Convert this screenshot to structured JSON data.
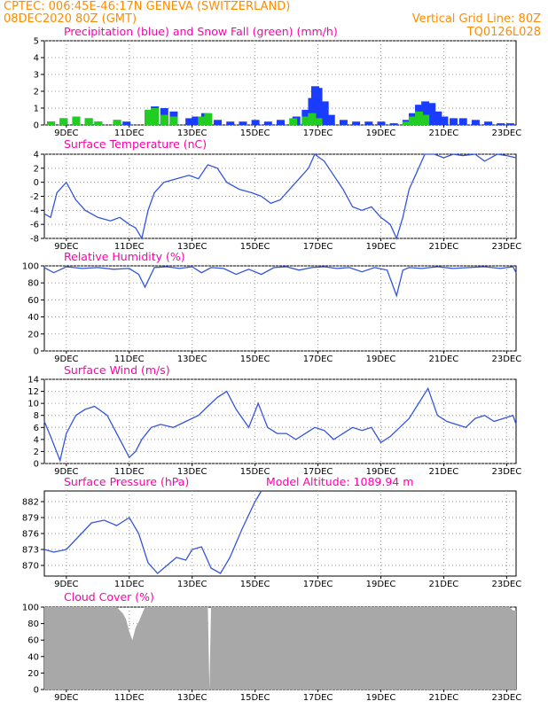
{
  "header": {
    "line1": "CPTEC:   006:45E-46:17N   GENEVA (SWITZERLAND)",
    "line2": "08DEC2020 80Z (GMT)",
    "grid_note": "Vertical Grid Line: 80Z",
    "code": "TQ0126L028"
  },
  "colors": {
    "header": "#ff8c00",
    "title": "#ff00aa",
    "precip": "#1a3cff",
    "snow": "#22cc22",
    "line": "#3355dd",
    "cloud": "#a8a8a8",
    "grid": "#999999"
  },
  "x_axis": {
    "labels": [
      "9DEC",
      "11DEC",
      "13DEC",
      "15DEC",
      "17DEC",
      "19DEC",
      "21DEC",
      "23DEC"
    ],
    "label_days": [
      9,
      11,
      13,
      15,
      17,
      19,
      21,
      23
    ],
    "range_days": [
      8.3,
      23.3
    ]
  },
  "chart_data": [
    {
      "type": "bar",
      "title": "Precipitation (blue) and Snow Fall (green) (mm/h)",
      "ylim": [
        0,
        5
      ],
      "yticks": [
        "0",
        "1",
        "2",
        "3",
        "4",
        "5"
      ],
      "series": [
        {
          "name": "Precipitation",
          "x": [
            8.5,
            8.9,
            9.3,
            9.7,
            10.0,
            10.6,
            10.9,
            11.6,
            11.8,
            12.1,
            12.4,
            12.9,
            13.1,
            13.4,
            13.8,
            14.2,
            14.6,
            15.0,
            15.4,
            15.8,
            16.3,
            16.6,
            16.8,
            16.9,
            17.0,
            17.2,
            17.4,
            17.8,
            18.2,
            18.6,
            19.0,
            19.4,
            19.8,
            20.0,
            20.2,
            20.4,
            20.6,
            20.8,
            21.0,
            21.3,
            21.6,
            22.0,
            22.4,
            22.8,
            23.1
          ],
          "values": [
            0.2,
            0.4,
            0.5,
            0.4,
            0.2,
            0.3,
            0.2,
            0.9,
            1.1,
            1.0,
            0.8,
            0.4,
            0.5,
            0.7,
            0.3,
            0.2,
            0.2,
            0.3,
            0.2,
            0.3,
            0.5,
            0.9,
            1.6,
            2.3,
            2.2,
            1.4,
            0.6,
            0.3,
            0.2,
            0.2,
            0.2,
            0.1,
            0.3,
            0.7,
            1.2,
            1.4,
            1.3,
            0.8,
            0.5,
            0.4,
            0.4,
            0.3,
            0.2,
            0.1,
            0.1
          ]
        },
        {
          "name": "Snow Fall",
          "x": [
            8.5,
            8.9,
            9.3,
            9.7,
            10.0,
            10.6,
            11.6,
            11.8,
            12.1,
            12.4,
            13.3,
            13.5,
            16.2,
            16.6,
            16.8,
            17.0,
            19.8,
            20.0,
            20.2,
            20.4
          ],
          "values": [
            0.2,
            0.4,
            0.5,
            0.4,
            0.2,
            0.3,
            0.9,
            1.0,
            0.6,
            0.5,
            0.5,
            0.7,
            0.4,
            0.5,
            0.7,
            0.4,
            0.2,
            0.5,
            0.8,
            0.6
          ]
        }
      ]
    },
    {
      "type": "line",
      "title": "Surface Temperature (nC)",
      "ylim": [
        -8,
        4
      ],
      "yticks": [
        "-8",
        "-6",
        "-4",
        "-2",
        "0",
        "2",
        "4"
      ],
      "x": [
        8.3,
        8.5,
        8.7,
        9.0,
        9.3,
        9.6,
        10.0,
        10.4,
        10.7,
        11.0,
        11.2,
        11.4,
        11.6,
        11.8,
        12.1,
        12.5,
        12.9,
        13.2,
        13.5,
        13.8,
        14.1,
        14.5,
        14.9,
        15.2,
        15.5,
        15.8,
        16.1,
        16.4,
        16.7,
        16.9,
        17.2,
        17.5,
        17.8,
        18.1,
        18.4,
        18.7,
        19.0,
        19.3,
        19.5,
        19.7,
        19.9,
        20.1,
        20.4,
        20.7,
        21.0,
        21.3,
        21.6,
        22.0,
        22.3,
        22.7,
        23.0,
        23.3
      ],
      "values": [
        -4.5,
        -5.0,
        -1.5,
        0.0,
        -2.5,
        -4.0,
        -5.0,
        -5.5,
        -5.0,
        -6.0,
        -6.5,
        -8.5,
        -4.0,
        -1.5,
        0.0,
        0.5,
        1.0,
        0.5,
        2.5,
        2.0,
        0.0,
        -1.0,
        -1.5,
        -2.0,
        -3.0,
        -2.5,
        -1.0,
        0.5,
        2.0,
        4.0,
        3.0,
        1.0,
        -1.0,
        -3.5,
        -4.0,
        -3.5,
        -5.0,
        -6.0,
        -8.5,
        -5.0,
        -1.0,
        1.0,
        4.0,
        4.0,
        3.5,
        4.0,
        3.8,
        4.0,
        3.0,
        4.0,
        3.8,
        3.5
      ]
    },
    {
      "type": "line",
      "title": "Relative Humidity (%)",
      "ylim": [
        0,
        100
      ],
      "yticks": [
        "0",
        "20",
        "40",
        "60",
        "80",
        "100"
      ],
      "x": [
        8.3,
        8.6,
        9.0,
        9.5,
        10.0,
        10.5,
        11.0,
        11.3,
        11.5,
        11.8,
        12.2,
        12.6,
        13.0,
        13.3,
        13.6,
        14.0,
        14.4,
        14.8,
        15.2,
        15.6,
        16.0,
        16.4,
        16.8,
        17.2,
        17.6,
        18.0,
        18.4,
        18.8,
        19.2,
        19.5,
        19.7,
        19.9,
        20.3,
        20.8,
        21.3,
        21.8,
        22.3,
        22.8,
        23.2,
        23.3
      ],
      "values": [
        98,
        92,
        99,
        97,
        98,
        96,
        97,
        90,
        75,
        98,
        99,
        97,
        99,
        92,
        98,
        97,
        90,
        96,
        90,
        98,
        99,
        95,
        98,
        99,
        97,
        98,
        93,
        98,
        95,
        65,
        95,
        98,
        97,
        99,
        97,
        98,
        99,
        97,
        99,
        92
      ]
    },
    {
      "type": "line",
      "title": "Surface Wind (m/s)",
      "ylim": [
        0,
        14
      ],
      "yticks": [
        "0",
        "2",
        "4",
        "6",
        "8",
        "10",
        "12",
        "14"
      ],
      "x": [
        8.3,
        8.5,
        8.8,
        9.0,
        9.3,
        9.6,
        9.9,
        10.3,
        10.6,
        10.8,
        11.0,
        11.2,
        11.4,
        11.7,
        12.0,
        12.4,
        12.8,
        13.2,
        13.5,
        13.8,
        14.1,
        14.4,
        14.8,
        15.1,
        15.4,
        15.7,
        16.0,
        16.3,
        16.6,
        16.9,
        17.2,
        17.5,
        17.8,
        18.1,
        18.4,
        18.7,
        19.0,
        19.3,
        19.6,
        19.9,
        20.2,
        20.5,
        20.8,
        21.1,
        21.4,
        21.7,
        22.0,
        22.3,
        22.6,
        22.9,
        23.2,
        23.3
      ],
      "values": [
        7.0,
        4.5,
        0.5,
        5.0,
        8.0,
        9.0,
        9.5,
        8.0,
        5.0,
        3.0,
        1.0,
        2.0,
        4.0,
        6.0,
        6.5,
        6.0,
        7.0,
        8.0,
        9.5,
        11.0,
        12.0,
        9.0,
        6.0,
        10.0,
        6.0,
        5.0,
        5.0,
        4.0,
        5.0,
        6.0,
        5.5,
        4.0,
        5.0,
        6.0,
        5.5,
        6.0,
        3.5,
        4.5,
        6.0,
        7.5,
        10.0,
        12.5,
        8.0,
        7.0,
        6.5,
        6.0,
        7.5,
        8.0,
        7.0,
        7.5,
        8.0,
        6.5
      ]
    },
    {
      "type": "line",
      "title": "Surface Pressure (hPa)",
      "annotation": "Model Altitude: 1089.94  m",
      "ylim": [
        868,
        884
      ],
      "yticks": [
        "870",
        "873",
        "876",
        "879",
        "882"
      ],
      "x": [
        8.3,
        8.6,
        9.0,
        9.4,
        9.8,
        10.2,
        10.6,
        11.0,
        11.3,
        11.6,
        11.9,
        12.2,
        12.5,
        12.8,
        13.0,
        13.3,
        13.6,
        13.9,
        14.2,
        14.6,
        15.0,
        15.2
      ],
      "values": [
        873.0,
        872.5,
        873.0,
        875.5,
        878.0,
        878.5,
        877.5,
        879.0,
        876.0,
        870.5,
        868.5,
        870.0,
        871.5,
        871.0,
        873.0,
        873.5,
        869.5,
        868.5,
        871.5,
        877.0,
        882.0,
        884.0
      ]
    },
    {
      "type": "area",
      "title": "Cloud Cover (%)",
      "ylim": [
        0,
        100
      ],
      "yticks": [
        "0",
        "20",
        "40",
        "60",
        "80",
        "100"
      ],
      "x": [
        8.3,
        10.6,
        10.8,
        10.9,
        11.0,
        11.1,
        11.2,
        11.3,
        11.5,
        13.5,
        13.55,
        13.6,
        23.1,
        23.2,
        23.3
      ],
      "values": [
        100,
        100,
        92,
        85,
        70,
        60,
        75,
        82,
        100,
        100,
        0,
        100,
        100,
        96,
        96
      ]
    }
  ]
}
